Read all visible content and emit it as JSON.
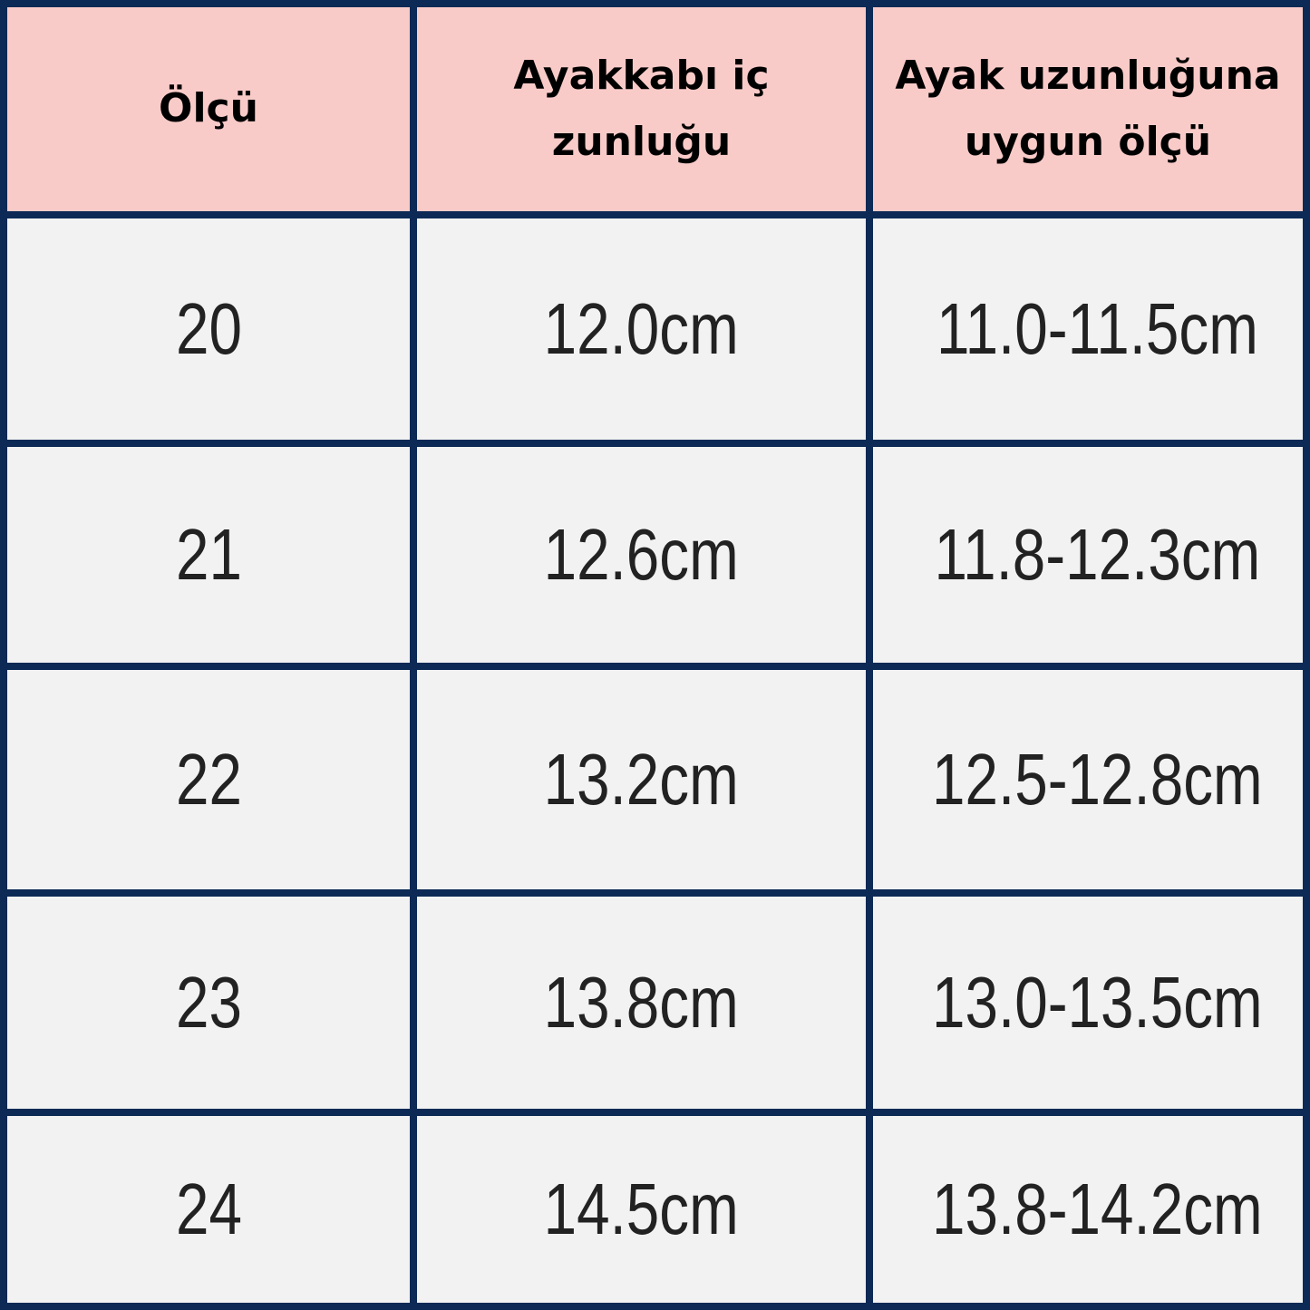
{
  "headers": [
    "Ölçü",
    "Ayakkabı iç zunluğu",
    "Ayak uzunluğuna uygun ölçü"
  ],
  "rows": [
    [
      "20",
      "12.0cm",
      "11.0-11.5cm"
    ],
    [
      "21",
      "12.6cm",
      "11.8-12.3cm"
    ],
    [
      "22",
      "13.2cm",
      "12.5-12.8cm"
    ],
    [
      "23",
      "13.8cm",
      "13.0-13.5cm"
    ],
    [
      "24",
      "14.5cm",
      "13.8-14.2cm"
    ]
  ],
  "colors": {
    "border": "#0c2a55",
    "header_bg": "#f9cbc8",
    "cell_bg": "#f2f2f2"
  }
}
